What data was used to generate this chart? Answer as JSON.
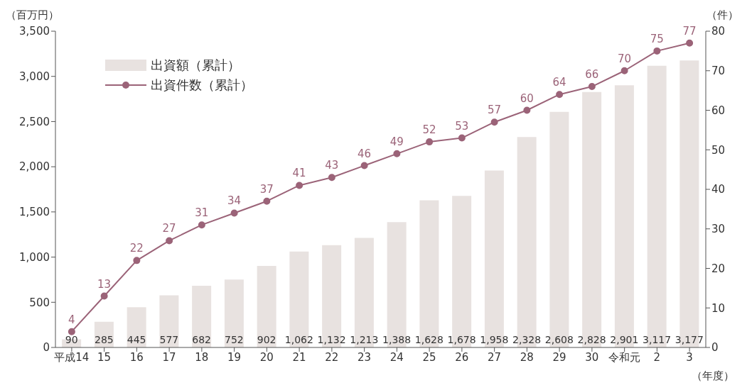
{
  "chart_data": {
    "type": "bar",
    "ylabel": "（百万円）",
    "y2label": "（件）",
    "xlabel": "（年度）",
    "categories": [
      "平成14",
      "15",
      "16",
      "17",
      "18",
      "19",
      "20",
      "21",
      "22",
      "23",
      "24",
      "25",
      "26",
      "27",
      "28",
      "29",
      "30",
      "令和元",
      "2",
      "3"
    ],
    "series": [
      {
        "name": "出資額（累計）",
        "color": "#e8e2e0",
        "values": [
          90,
          285,
          445,
          577,
          682,
          752,
          902,
          1062,
          1132,
          1213,
          1388,
          1628,
          1678,
          1958,
          2328,
          2608,
          2828,
          2901,
          3117,
          3177
        ],
        "value_labels": [
          "90",
          "285",
          "445",
          "577",
          "682",
          "752",
          "902",
          "1,062",
          "1,132",
          "1,213",
          "1,388",
          "1,628",
          "1,678",
          "1,958",
          "2,328",
          "2,608",
          "2,828",
          "2,901",
          "3,117",
          "3,177"
        ]
      },
      {
        "name": "出資件数（累計）",
        "type": "line",
        "axis": "y2",
        "color": "#9b6378",
        "values": [
          4,
          13,
          22,
          27,
          31,
          34,
          37,
          41,
          43,
          46,
          49,
          52,
          53,
          57,
          60,
          64,
          66,
          70,
          75,
          77
        ],
        "value_labels": [
          "4",
          "13",
          "22",
          "27",
          "31",
          "34",
          "37",
          "41",
          "43",
          "46",
          "49",
          "52",
          "53",
          "57",
          "60",
          "64",
          "66",
          "70",
          "75",
          "77"
        ]
      }
    ],
    "ylim": [
      0,
      3500
    ],
    "yticks": [
      0,
      500,
      {
        "value": 1000,
        "label": "1,000"
      },
      {
        "value": 1500,
        "label": "1,500"
      },
      {
        "value": 2000,
        "label": "2,000"
      },
      {
        "value": 2500,
        "label": "2,500"
      },
      {
        "value": 3000,
        "label": "3,000"
      },
      {
        "value": 3500,
        "label": "3,500"
      }
    ],
    "y2lim": [
      0,
      80
    ],
    "y2ticks": [
      0,
      10,
      20,
      30,
      40,
      50,
      60,
      70,
      80
    ],
    "grid": false,
    "legend": "top left",
    "marker": "circle",
    "line_style": "solid"
  }
}
